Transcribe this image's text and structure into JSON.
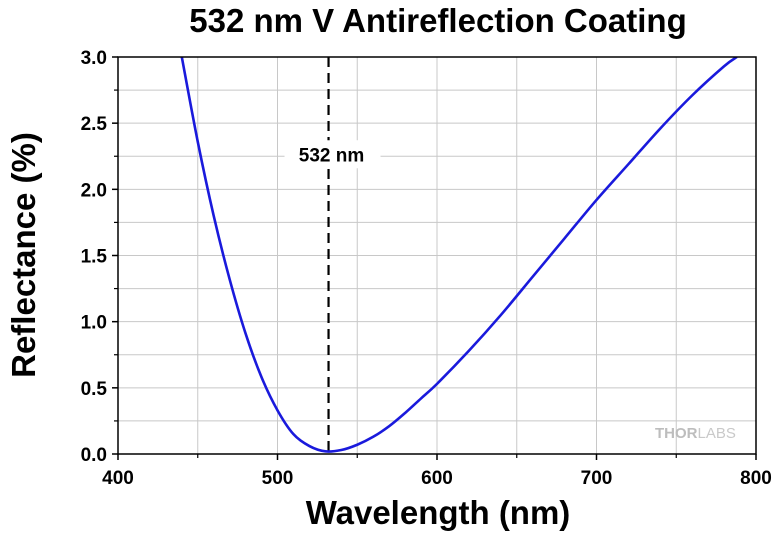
{
  "chart_data": {
    "type": "line",
    "title": "532 nm V Antireflection Coating",
    "xlabel": "Wavelength (nm)",
    "ylabel": "Reflectance (%)",
    "xlim": [
      400,
      800
    ],
    "ylim": [
      0,
      3.0
    ],
    "x_ticks": [
      "400",
      "500",
      "600",
      "700",
      "800"
    ],
    "y_ticks": [
      "0.0",
      "0.5",
      "1.0",
      "1.5",
      "2.0",
      "2.5",
      "3.0"
    ],
    "grid": true,
    "series": [
      {
        "color": "#1a1adc",
        "x": [
          440,
          450,
          460,
          470,
          480,
          490,
          500,
          510,
          520,
          530,
          540,
          550,
          560,
          570,
          580,
          590,
          600,
          620,
          640,
          660,
          680,
          700,
          720,
          740,
          760,
          780,
          788
        ],
        "y": [
          3.0,
          2.36,
          1.8,
          1.32,
          0.91,
          0.58,
          0.33,
          0.15,
          0.06,
          0.02,
          0.03,
          0.07,
          0.13,
          0.21,
          0.31,
          0.42,
          0.53,
          0.78,
          1.05,
          1.34,
          1.63,
          1.92,
          2.19,
          2.46,
          2.71,
          2.93,
          3.0
        ]
      }
    ],
    "annotations": [
      {
        "type": "vline",
        "x": 532,
        "label": "532 nm",
        "style": "dashed",
        "label_y": 2.25
      }
    ]
  },
  "watermark": {
    "part1": "THOR",
    "part2": "LABS"
  }
}
